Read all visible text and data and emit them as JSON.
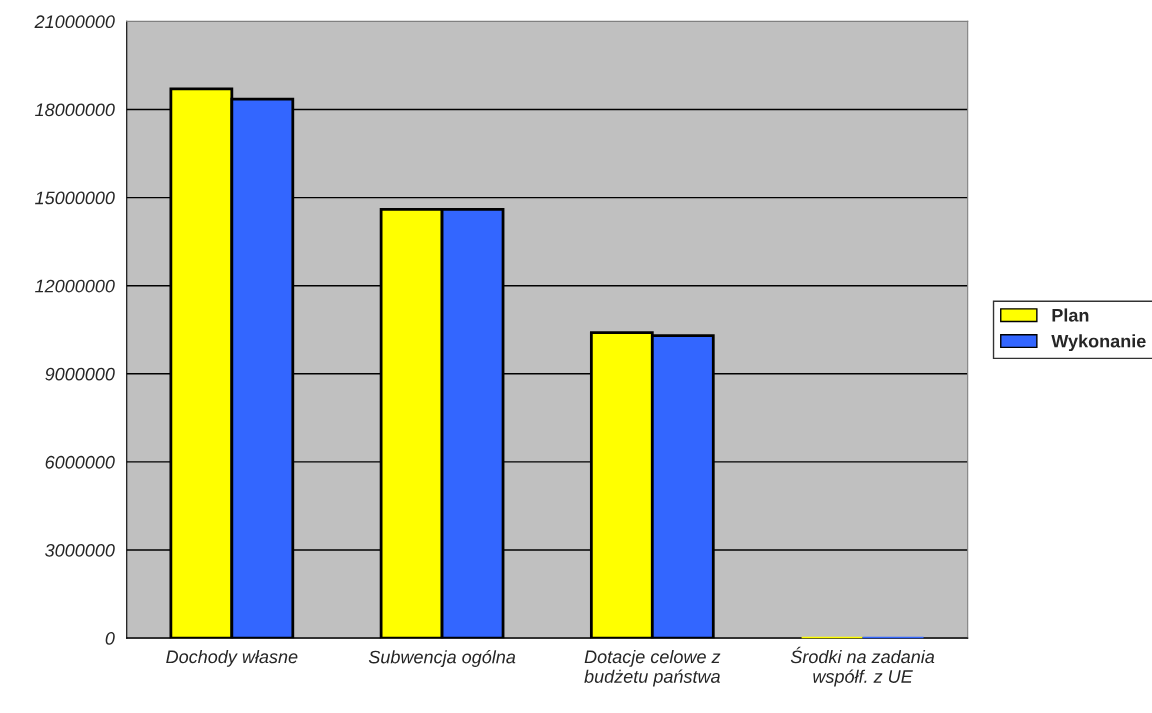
{
  "chart_data": {
    "type": "bar",
    "categories": [
      "Dochody własne",
      "Subwencja ogólna",
      "Dotacje celowe z\nbudżetu państwa",
      "Środki na zadania\nwspółf. z UE"
    ],
    "series": [
      {
        "name": "Plan",
        "color": "#ffff00",
        "values": [
          18700000,
          14600000,
          10400000,
          0
        ]
      },
      {
        "name": "Wykonanie",
        "color": "#3366ff",
        "values": [
          18350000,
          14600000,
          10300000,
          0
        ]
      }
    ],
    "ylim": [
      0,
      21000000
    ],
    "yticks": [
      0,
      3000000,
      6000000,
      9000000,
      12000000,
      15000000,
      18000000,
      21000000
    ],
    "grid": "y",
    "legend": "right"
  }
}
